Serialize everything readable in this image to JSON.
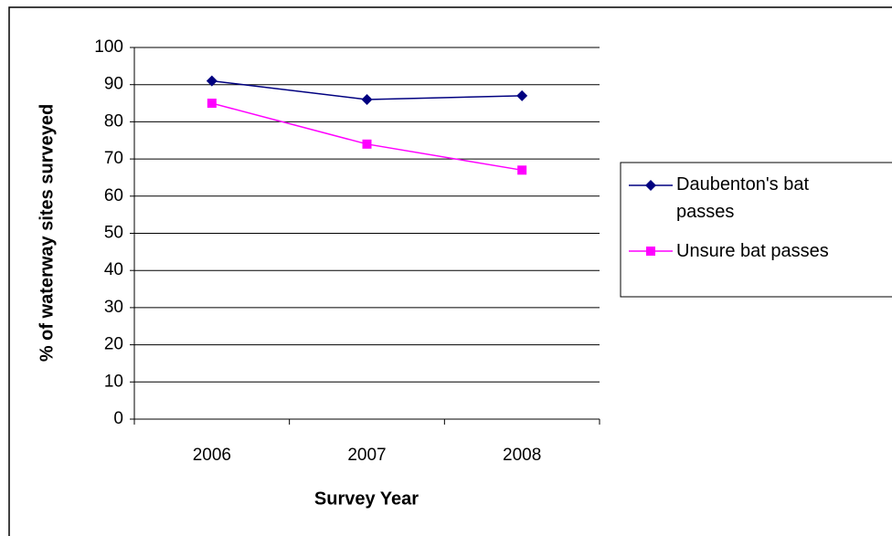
{
  "chart_data": {
    "type": "line",
    "x_label": "Survey Year",
    "y_label": "% of waterway sites surveyed",
    "categories": [
      "2006",
      "2007",
      "2008"
    ],
    "series": [
      {
        "name": "Daubenton's bat passes",
        "color": "#000080",
        "marker": "diamond",
        "values": [
          91,
          86,
          87
        ]
      },
      {
        "name": "Unsure bat passes",
        "color": "#ff00ff",
        "marker": "square",
        "values": [
          85,
          74,
          67
        ]
      }
    ],
    "ylim": [
      0,
      100
    ],
    "yticks": [
      0,
      10,
      20,
      30,
      40,
      50,
      60,
      70,
      80,
      90,
      100
    ],
    "grid": true
  }
}
